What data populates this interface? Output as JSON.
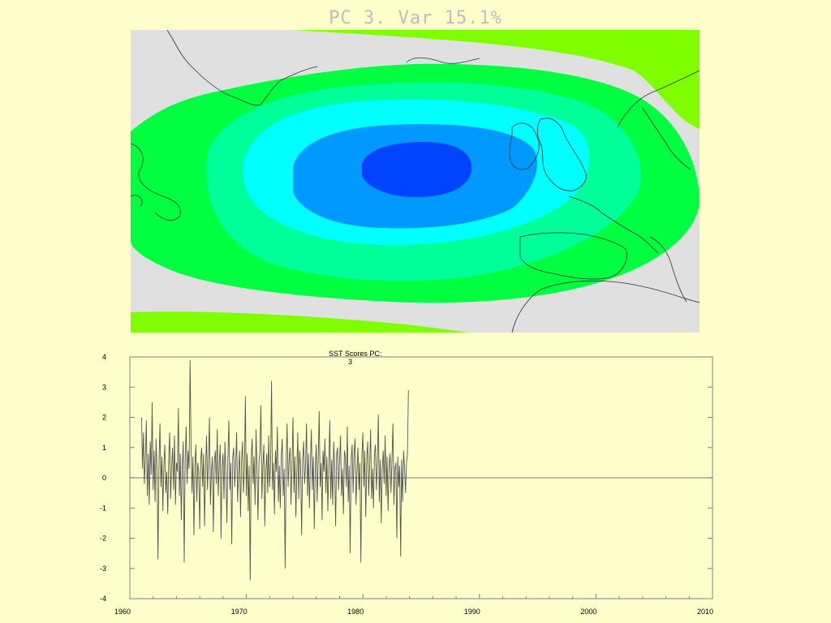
{
  "map": {
    "title": "PC   3. Var 15.1%",
    "colors": {
      "land_bg": "#e0e0e0",
      "level_lime": "#80ff00",
      "level_green": "#00ff40",
      "level_aqua_green": "#00ff99",
      "level_cyan": "#00ffff",
      "level_azure": "#0099ff",
      "level_blue": "#0044ff",
      "coastline": "#333333"
    }
  },
  "chart_data": {
    "type": "line",
    "title_label": "SST Scores PC:",
    "title_value": "3",
    "xlim": [
      1960,
      2010
    ],
    "ylim": [
      -4,
      4
    ],
    "x_ticks": [
      "1960",
      "1970",
      "1980",
      "1990",
      "2000",
      "2010"
    ],
    "y_ticks": [
      "4",
      "3",
      "2",
      "1",
      "0",
      "-1",
      "-2",
      "-3",
      "-4"
    ],
    "grid": false,
    "zero_line": true,
    "series": [
      {
        "start_year": 1961,
        "step_years": 0.0833,
        "values": [
          2.0,
          0.3,
          1.5,
          -0.2,
          0.6,
          1.9,
          -0.6,
          0.8,
          -0.9,
          1.2,
          0.1,
          2.5,
          -0.4,
          0.9,
          -0.8,
          1.3,
          0.2,
          -2.7,
          0.5,
          1.8,
          -0.3,
          0.7,
          -1.1,
          0.4,
          1.1,
          -0.5,
          0.2,
          -1.2,
          0.6,
          1.5,
          -0.7,
          0.3,
          1.0,
          -0.4,
          1.4,
          -0.9,
          0.5,
          0.2,
          2.3,
          -0.6,
          0.8,
          -1.4,
          0.4,
          1.2,
          -2.8,
          0.6,
          1.7,
          -0.2,
          0.9,
          0.3,
          3.9,
          1.2,
          -0.5,
          0.7,
          -1.9,
          0.4,
          1.1,
          -0.8,
          0.5,
          0.2,
          -1.7,
          0.6,
          1.0,
          -0.3,
          0.8,
          -1.6,
          0.3,
          1.4,
          -0.4,
          0.6,
          2.0,
          -0.9,
          0.2,
          0.7,
          -1.8,
          0.5,
          0.9,
          -0.2,
          1.6,
          -0.6,
          0.4,
          1.1,
          -2.0,
          0.3,
          0.8,
          -0.7,
          1.2,
          0.1,
          -1.5,
          0.6,
          1.9,
          -0.4,
          0.5,
          -2.2,
          0.7,
          1.0,
          -0.3,
          0.4,
          1.5,
          -0.8,
          0.2,
          0.9,
          -1.3,
          0.5,
          1.2,
          -0.5,
          0.3,
          2.7,
          -0.6,
          0.8,
          -1.1,
          0.4,
          -3.4,
          0.6,
          1.3,
          -0.2,
          0.7,
          -0.9,
          1.6,
          0.3,
          -1.4,
          0.5,
          0.9,
          2.4,
          -0.7,
          0.4,
          1.1,
          -1.6,
          0.2,
          0.8,
          -0.5,
          1.4,
          -0.3,
          0.6,
          3.2,
          -0.4,
          0.5,
          -1.2,
          0.9,
          0.2,
          1.7,
          -0.8,
          0.4,
          -1.0,
          0.7,
          1.3,
          -0.6,
          0.3,
          -3.0,
          0.5,
          1.8,
          -0.3,
          0.6,
          1.0,
          -0.9,
          0.4,
          2.0,
          -0.5,
          0.7,
          -1.3,
          0.2,
          1.5,
          -0.7,
          0.9,
          0.3,
          -1.9,
          0.6,
          1.2,
          -0.2,
          0.4,
          1.8,
          -0.6,
          0.8,
          -1.0,
          0.5,
          1.6,
          -0.4,
          0.7,
          -1.7,
          0.3,
          1.1,
          -0.8,
          0.6,
          2.2,
          -0.3,
          0.5,
          -1.4,
          0.9,
          0.2,
          1.3,
          -0.5,
          0.7,
          -1.1,
          0.4,
          1.9,
          -0.7,
          0.6,
          -0.9,
          1.2,
          0.3,
          -1.6,
          0.8,
          1.0,
          -0.4,
          0.5,
          1.4,
          -0.6,
          0.3,
          -1.2,
          0.9,
          0.7,
          -0.3,
          1.7,
          -0.8,
          0.4,
          -2.5,
          0.6,
          1.1,
          -0.5,
          0.8,
          1.3,
          -0.9,
          0.2,
          1.0,
          -0.4,
          0.5,
          -2.8,
          0.7,
          1.5,
          -0.3,
          0.9,
          -1.3,
          0.6,
          1.2,
          -0.6,
          0.4,
          1.6,
          -0.7,
          0.3,
          -1.0,
          0.8,
          1.1,
          -0.4,
          0.5,
          2.1,
          -0.8,
          0.6,
          -1.5,
          0.3,
          0.9,
          -0.2,
          1.4,
          -0.6,
          0.7,
          -1.1,
          0.4,
          0.8,
          -0.5,
          0.6,
          1.8,
          -0.9,
          0.3,
          0.5,
          -2.0,
          0.7,
          -0.3,
          0.4,
          -2.6,
          0.6,
          -0.8,
          0.9,
          0.3,
          -0.5,
          0.5,
          0.8,
          2.9
        ]
      }
    ]
  }
}
